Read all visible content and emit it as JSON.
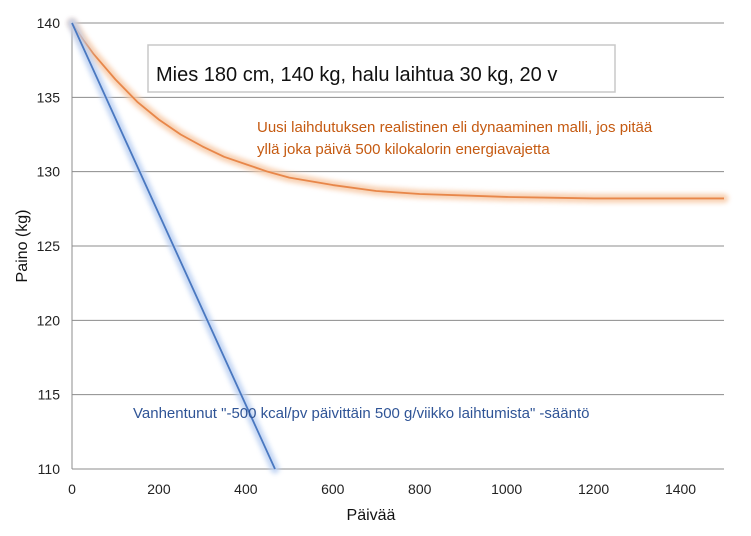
{
  "chart_data": {
    "type": "line",
    "title": "Mies 180 cm, 140 kg, halu laihtua 30 kg, 20 v",
    "xlabel": "Päivää",
    "ylabel": "Paino  (kg)",
    "xlim": [
      0,
      1500
    ],
    "ylim": [
      110,
      140
    ],
    "x_ticks": [
      0,
      200,
      400,
      600,
      800,
      1000,
      1200,
      1400
    ],
    "y_ticks": [
      110,
      115,
      120,
      125,
      130,
      135,
      140
    ],
    "grid": "horizontal",
    "colors": {
      "dynamic": "#e8874a",
      "dynamic_glow": "#f7c9a6",
      "rule": "#4a78c0",
      "rule_glow": "#b9cff2",
      "grid": "#8c8c8c",
      "annot_dynamic": "#c55a11",
      "annot_rule": "#2f5496"
    },
    "series": [
      {
        "x": [
          0,
          25,
          50,
          100,
          150,
          200,
          250,
          300,
          350,
          400,
          450,
          500,
          600,
          700,
          800,
          900,
          1000,
          1100,
          1200,
          1300,
          1400,
          1500
        ],
        "y": [
          140.0,
          138.9,
          137.9,
          136.2,
          134.7,
          133.5,
          132.5,
          131.7,
          131.0,
          130.5,
          130.0,
          129.6,
          129.1,
          128.7,
          128.5,
          128.4,
          128.3,
          128.25,
          128.2,
          128.2,
          128.2,
          128.2
        ]
      },
      {
        "x": [
          0,
          467
        ],
        "y": [
          140,
          110
        ]
      }
    ],
    "annotations": {
      "dynamic_line1": "Uusi laihdutuksen realistinen eli dynaaminen malli, jos pitää",
      "dynamic_line2": "yllä joka päivä 500 kilokalorin energiavajetta",
      "rule": "Vanhentunut \"-500 kcal/pv päivittäin 500 g/viikko laihtumista\" -sääntö"
    }
  }
}
